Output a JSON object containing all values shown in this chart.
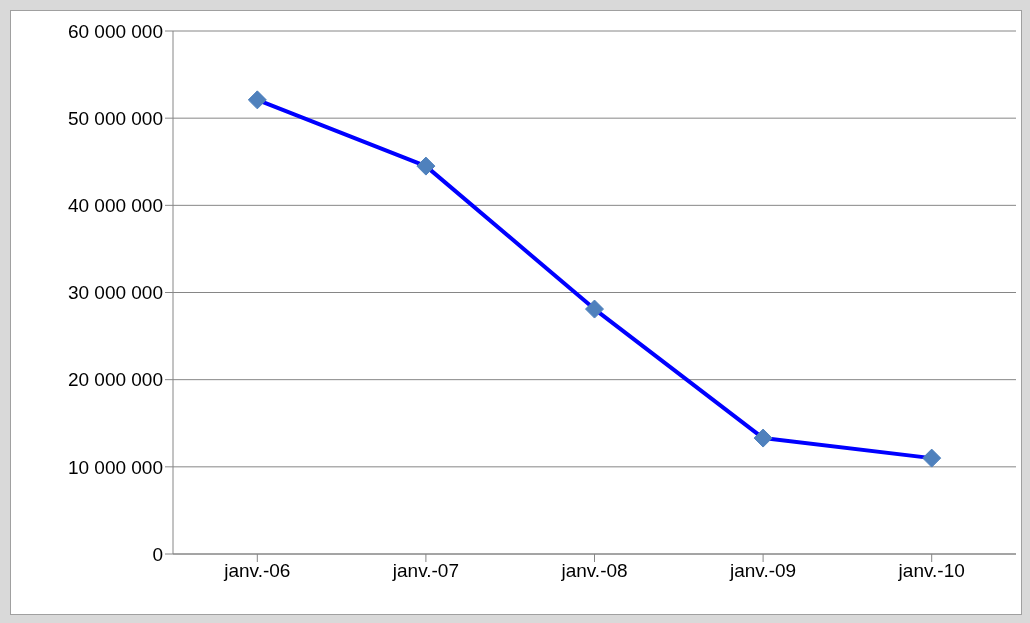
{
  "chart_data": {
    "type": "line",
    "categories": [
      "janv.-06",
      "janv.-07",
      "janv.-08",
      "janv.-09",
      "janv.-10"
    ],
    "series": [
      {
        "color": "#0000ff",
        "colors": [
          "#4f81bd",
          "#4f81bd",
          "#4f81bd",
          "#4f81bd",
          "#4f81bd"
        ],
        "values": [
          52100000,
          44500000,
          28100000,
          13300000,
          11000000
        ]
      }
    ],
    "ylim": [
      0,
      60000000
    ],
    "yticks": [
      {
        "value": 0,
        "label": "0"
      },
      {
        "value": 10000000,
        "label": "10 000 000"
      },
      {
        "value": 20000000,
        "label": "20 000 000"
      },
      {
        "value": 30000000,
        "label": "30 000 000"
      },
      {
        "value": 40000000,
        "label": "40 000 000"
      },
      {
        "value": 50000000,
        "label": "50 000 000"
      },
      {
        "value": 60000000,
        "label": "60 000 000"
      }
    ],
    "grid": "y",
    "legend": false,
    "marker": "diamond",
    "line_style": "solid"
  }
}
